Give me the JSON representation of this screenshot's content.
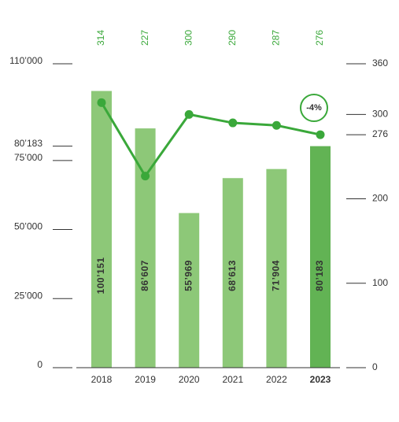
{
  "chart_data": {
    "type": "bar-line",
    "categories": [
      "2018",
      "2019",
      "2020",
      "2021",
      "2022",
      "2023"
    ],
    "series": [
      {
        "type": "bar",
        "colors": [
          "#8dc878",
          "#8dc878",
          "#8dc878",
          "#8dc878",
          "#8dc878",
          "#62b354"
        ],
        "values": [
          100151,
          86607,
          55969,
          68613,
          71904,
          80183
        ],
        "value_labels": [
          "100’151",
          "86’607",
          "55’969",
          "68’613",
          "71’904",
          "80’183"
        ]
      },
      {
        "type": "line",
        "axis": "y2",
        "color": "#3aa83a",
        "values": [
          314,
          227,
          300,
          290,
          287,
          276
        ]
      }
    ],
    "ylim": [
      0,
      110000
    ],
    "yticks": [
      0,
      {
        "value": 25000,
        "label": "25’000"
      },
      {
        "value": 50000,
        "label": "50’000"
      },
      {
        "value": 75000,
        "label": "75’000"
      },
      {
        "value": 80183,
        "label": "80’183"
      },
      {
        "value": 110000,
        "label": "110’000"
      }
    ],
    "y2lim": [
      0,
      360
    ],
    "y2ticks": [
      0,
      100,
      200,
      276,
      300,
      360
    ],
    "annotation": "-4%"
  }
}
